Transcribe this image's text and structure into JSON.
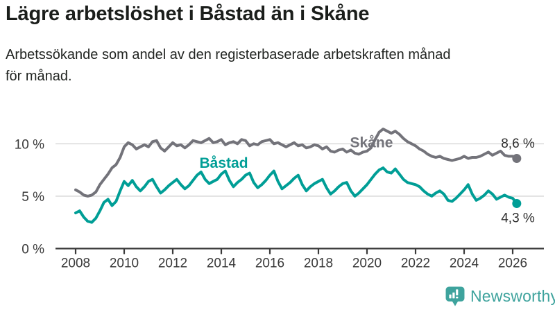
{
  "header": {
    "title": "Lägre arbetslöshet i Båstad än i Skåne",
    "subtitle": "Arbetssökande som andel av den registerbaserade arbetskraften månad för månad.",
    "subtitle_lines": [
      "Arbetssökande som andel av den registerbaserade arbetskraften månad",
      "för månad."
    ]
  },
  "branding": {
    "logo_text": "Newsworthy",
    "logo_color": "#3ea39d",
    "logo_icon": "bar-chart-speech-bubble"
  },
  "chart_data": {
    "type": "line",
    "title": "Lägre arbetslöshet i Båstad än i Skåne",
    "subtitle": "Arbetssökande som andel av den registerbaserade arbetskraften månad för månad.",
    "xlabel": "",
    "ylabel": "",
    "grid": true,
    "grid_color": "#dcdcdc",
    "axis_color": "#3a3a3a",
    "tick_label_color": "#3a3a3a",
    "end_label_color": "#2e2e2e",
    "xlim": [
      2007.2,
      2027.3
    ],
    "ylim": [
      0,
      12.6
    ],
    "x_start": 2008,
    "points_per_year": 6,
    "x_ticks": [
      {
        "value": 2008,
        "label": "2008"
      },
      {
        "value": 2010,
        "label": "2010"
      },
      {
        "value": 2012,
        "label": "2012"
      },
      {
        "value": 2014,
        "label": "2014"
      },
      {
        "value": 2016,
        "label": "2016"
      },
      {
        "value": 2018,
        "label": "2018"
      },
      {
        "value": 2020,
        "label": "2020"
      },
      {
        "value": 2022,
        "label": "2022"
      },
      {
        "value": 2024,
        "label": "2024"
      },
      {
        "value": 2026,
        "label": "2026"
      }
    ],
    "y_ticks": [
      {
        "value": 0,
        "label": "0 %",
        "gridline": false
      },
      {
        "value": 5,
        "label": "5 %",
        "gridline": true
      },
      {
        "value": 10,
        "label": "10 %",
        "gridline": true
      }
    ],
    "legend_position": "inline-labels",
    "series": [
      {
        "name": "Skåne",
        "color": "#73737a",
        "end_label": "8,6 %",
        "end_value": 8.6,
        "label_x": 2019.3,
        "label_y": 9.65,
        "end_label_dx": 26,
        "end_label_dy": -15.5,
        "values": [
          5.6,
          5.4,
          5.1,
          5.0,
          5.1,
          5.4,
          6.1,
          6.6,
          7.1,
          7.7,
          8.0,
          8.7,
          9.7,
          10.1,
          9.9,
          9.5,
          9.7,
          9.9,
          9.7,
          10.2,
          10.3,
          9.6,
          9.3,
          9.7,
          10.1,
          9.8,
          9.9,
          9.6,
          9.9,
          10.3,
          10.2,
          10.1,
          10.3,
          10.5,
          10.1,
          10.2,
          10.4,
          9.9,
          10.1,
          10.2,
          10.0,
          10.4,
          10.3,
          9.8,
          10.0,
          9.9,
          10.2,
          10.3,
          10.4,
          10.0,
          10.1,
          9.9,
          9.7,
          9.9,
          10.1,
          9.8,
          9.9,
          9.6,
          9.7,
          9.9,
          9.8,
          9.5,
          9.7,
          9.3,
          9.2,
          9.4,
          9.5,
          9.2,
          9.4,
          9.1,
          9.0,
          9.2,
          9.3,
          9.6,
          10.4,
          11.1,
          11.4,
          11.2,
          11.0,
          11.2,
          10.9,
          10.5,
          10.2,
          10.0,
          9.8,
          9.5,
          9.3,
          9.0,
          8.8,
          8.7,
          8.8,
          8.6,
          8.5,
          8.4,
          8.5,
          8.6,
          8.8,
          8.6,
          8.7,
          8.7,
          8.8,
          9.0,
          9.2,
          8.9,
          9.1,
          9.3,
          8.9,
          8.8,
          8.8,
          8.6
        ]
      },
      {
        "name": "Båstad",
        "color": "#009e96",
        "end_label": "4,3 %",
        "end_value": 4.3,
        "label_x": 2013.1,
        "label_y": 7.7,
        "end_label_dx": 26,
        "end_label_dy": 27,
        "values": [
          3.4,
          3.6,
          3.0,
          2.6,
          2.5,
          2.9,
          3.6,
          4.4,
          4.7,
          4.1,
          4.5,
          5.5,
          6.4,
          6.0,
          6.5,
          5.9,
          5.5,
          5.9,
          6.4,
          6.6,
          5.9,
          5.3,
          5.6,
          6.0,
          6.3,
          6.6,
          6.1,
          5.7,
          6.0,
          6.5,
          7.0,
          7.3,
          6.6,
          6.2,
          6.4,
          6.6,
          7.1,
          7.4,
          6.5,
          5.9,
          6.3,
          6.6,
          7.0,
          7.2,
          6.3,
          5.8,
          6.1,
          6.5,
          7.0,
          7.4,
          6.4,
          5.7,
          6.0,
          6.3,
          6.7,
          7.0,
          6.1,
          5.5,
          5.9,
          6.2,
          6.4,
          6.6,
          5.8,
          5.2,
          5.5,
          5.9,
          6.2,
          6.3,
          5.5,
          5.0,
          5.3,
          5.7,
          6.1,
          6.6,
          7.1,
          7.5,
          7.7,
          7.3,
          7.2,
          7.6,
          7.1,
          6.6,
          6.3,
          6.2,
          6.1,
          5.9,
          5.5,
          5.2,
          5.0,
          5.3,
          5.5,
          5.2,
          4.6,
          4.5,
          4.8,
          5.2,
          5.6,
          6.1,
          5.2,
          4.6,
          4.8,
          5.1,
          5.5,
          5.2,
          4.7,
          4.9,
          5.1,
          4.9,
          4.8,
          4.3
        ]
      }
    ]
  }
}
